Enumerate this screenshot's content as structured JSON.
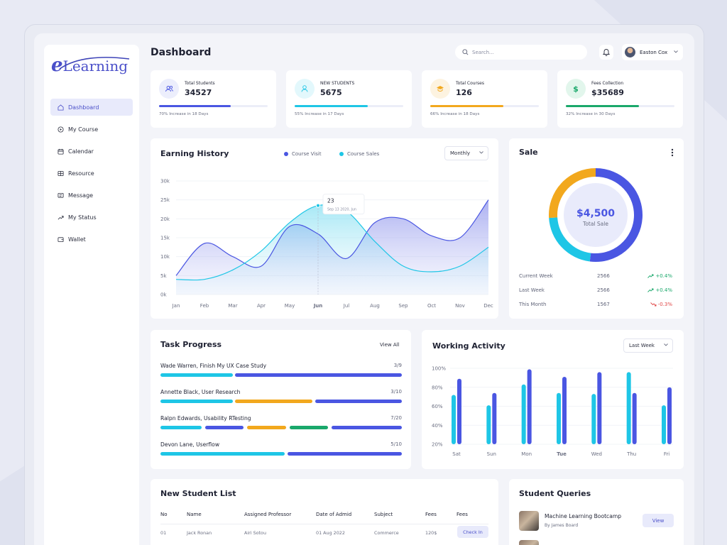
{
  "app": {
    "logo_text": "eLearning",
    "page_title": "Dashboard"
  },
  "sidebar": {
    "items": [
      {
        "label": "Dashboard",
        "icon": "home-icon",
        "active": true
      },
      {
        "label": "My Course",
        "icon": "play-circle-icon"
      },
      {
        "label": "Calendar",
        "icon": "calendar-icon"
      },
      {
        "label": "Resource",
        "icon": "grid-icon"
      },
      {
        "label": "Message",
        "icon": "message-icon"
      },
      {
        "label": "My Status",
        "icon": "trend-icon"
      },
      {
        "label": "Wallet",
        "icon": "wallet-icon"
      }
    ]
  },
  "header": {
    "search_placeholder": "Search...",
    "user_name": "Easton Cox"
  },
  "stats": [
    {
      "label": "Total Students",
      "value": "34527",
      "note": "70% Increase in 18 Days",
      "progress": 0.66,
      "color": "#4a56e2",
      "tint": "#eceefc",
      "icon": "users-icon"
    },
    {
      "label": "NEW STUDENTS",
      "value": "5675",
      "note": "55% Increase in 17 Days",
      "progress": 0.67,
      "color": "#1ec6e6",
      "tint": "#e3f8fc",
      "icon": "user-icon"
    },
    {
      "label": "Total Courses",
      "value": "126",
      "note": "66% Increase in 18 Days",
      "progress": 0.67,
      "color": "#f2a81d",
      "tint": "#fdf3e0",
      "icon": "graduation-cap-icon"
    },
    {
      "label": "Fees Collection",
      "value": "$35689",
      "note": "32% Increase in 30 Days",
      "progress": 0.67,
      "color": "#1aa86b",
      "tint": "#e2f6ec",
      "icon": "dollar-icon"
    }
  ],
  "earning": {
    "title": "Earning History",
    "legend": [
      {
        "label": "Course Visit",
        "color": "#4a56e2"
      },
      {
        "label": "Course Sales",
        "color": "#1ec6e6"
      }
    ],
    "period": "Monthly",
    "tooltip": {
      "value": "23",
      "date": "Sep 13 2020, Jun"
    }
  },
  "chart_data": [
    {
      "type": "area",
      "categories": [
        "Jan",
        "Feb",
        "Mar",
        "Apr",
        "May",
        "Jun",
        "Jul",
        "Aug",
        "Sep",
        "Oct",
        "Nov",
        "Dec"
      ],
      "yticks": [
        "0k",
        "5k",
        "10k",
        "15k",
        "20k",
        "25k",
        "30k"
      ],
      "ylim": [
        0,
        30000
      ],
      "series": [
        {
          "name": "Course Visit",
          "values": [
            5000,
            13500,
            10000,
            7500,
            18000,
            16000,
            9500,
            19000,
            20000,
            15500,
            15000,
            25000
          ]
        },
        {
          "name": "Course Sales",
          "values": [
            4000,
            4000,
            6500,
            11500,
            19000,
            23500,
            22000,
            14000,
            7500,
            6000,
            7500,
            12500
          ]
        }
      ]
    },
    {
      "type": "pie",
      "title": "Sale",
      "slices": [
        {
          "value": 0.52,
          "color": "#4a56e2"
        },
        {
          "value": 0.22,
          "color": "#1ec6e6"
        },
        {
          "value": 0.26,
          "color": "#f2a81d"
        }
      ],
      "center_value": "$4,500",
      "center_label": "Total Sale"
    },
    {
      "type": "bar",
      "title": "Working Activity",
      "categories": [
        "Sat",
        "Sun",
        "Mon",
        "Tue",
        "Wed",
        "Thu",
        "Fri"
      ],
      "ylim": [
        20,
        100
      ],
      "yticks": [
        "20%",
        "40%",
        "60%",
        "80%",
        "100%"
      ],
      "series": [
        {
          "values": [
            72,
            61,
            83,
            74,
            73,
            96,
            61
          ],
          "color": "#1ec6e6"
        },
        {
          "values": [
            89,
            74,
            99,
            91,
            96,
            74,
            80
          ],
          "color": "#4a56e2"
        }
      ]
    }
  ],
  "sale": {
    "rows": [
      {
        "label": "Current Week",
        "value": "2566",
        "change": "+0.4%",
        "up": true
      },
      {
        "label": "Last Week",
        "value": "2566",
        "change": "+0.4%",
        "up": true
      },
      {
        "label": "This Month",
        "value": "1567",
        "change": "-0.3%",
        "up": false
      }
    ]
  },
  "tasks": {
    "title": "Task Progress",
    "view_all": "View All",
    "items": [
      {
        "name": "Wade Warren, Finish My UX Case Study",
        "count": "3/9",
        "segments": [
          {
            "start": 0,
            "len": 0.3,
            "color": "#1ec6e6"
          },
          {
            "start": 0.31,
            "len": 0.69,
            "color": "#4a56e2"
          }
        ]
      },
      {
        "name": "Annette Black, User Research",
        "count": "3/10",
        "segments": [
          {
            "start": 0,
            "len": 0.3,
            "color": "#1ec6e6"
          },
          {
            "start": 0.31,
            "len": 0.32,
            "color": "#f2a81d"
          },
          {
            "start": 0.64,
            "len": 0.36,
            "color": "#4a56e2"
          }
        ]
      },
      {
        "name": "Ralpn Edwards, Usability RTesting",
        "count": "7/20",
        "segments": [
          {
            "start": 0,
            "len": 0.17,
            "color": "#1ec6e6"
          },
          {
            "start": 0.185,
            "len": 0.16,
            "color": "#4a56e2"
          },
          {
            "start": 0.36,
            "len": 0.16,
            "color": "#f2a81d"
          },
          {
            "start": 0.535,
            "len": 0.16,
            "color": "#1aa86b"
          },
          {
            "start": 0.71,
            "len": 0.29,
            "color": "#4a56e2"
          }
        ]
      },
      {
        "name": "Devon Lane, Userflow",
        "count": "5/10",
        "segments": [
          {
            "start": 0,
            "len": 0.515,
            "color": "#1ec6e6"
          },
          {
            "start": 0.525,
            "len": 0.475,
            "color": "#4a56e2"
          }
        ]
      }
    ]
  },
  "activity": {
    "period": "Last Week"
  },
  "students": {
    "title": "New Student List",
    "headers": [
      "No",
      "Name",
      "Assigned Professor",
      "Date of Admid",
      "Subject",
      "Fees",
      "Fees"
    ],
    "rows": [
      {
        "no": "01",
        "name": "Jack Ronan",
        "professor": "Airi Sotou",
        "date": "01 Aug 2022",
        "subject": "Commerce",
        "fees": "120$",
        "action": "Check In"
      }
    ]
  },
  "queries": {
    "title": "Student Queries",
    "items": [
      {
        "title": "Machine Learning Bootcamp",
        "author": "By James Board",
        "action": "View"
      }
    ]
  }
}
